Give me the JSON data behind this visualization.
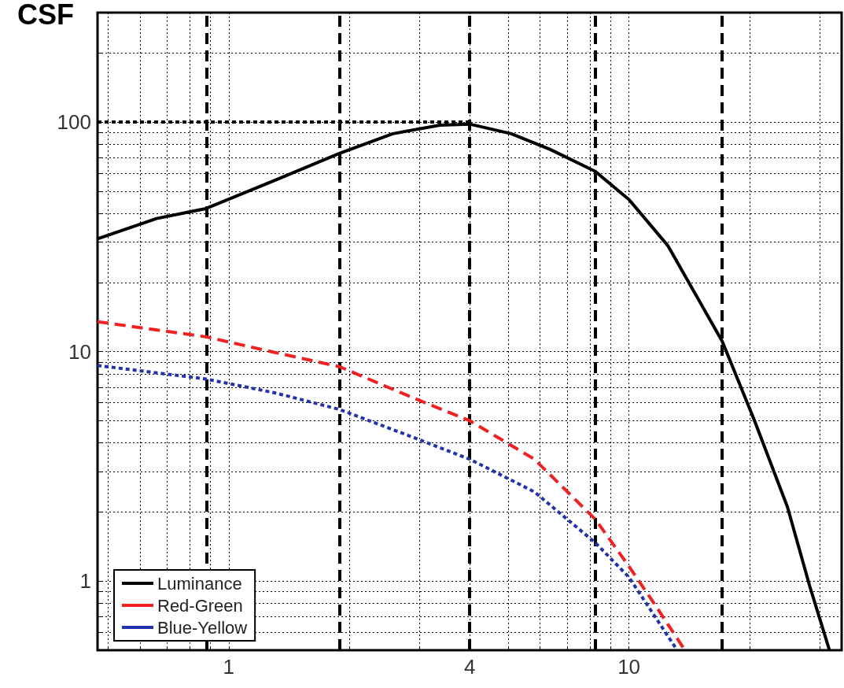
{
  "chart_data": {
    "type": "line",
    "ylabel": "CSF",
    "log": "xy",
    "grid": true,
    "legend": "bottom left",
    "marker": "none",
    "xlim": [
      0.47,
      34
    ],
    "ylim": [
      0.5,
      300
    ],
    "xticks": [
      {
        "value": 0.5,
        "label": null
      },
      {
        "value": 0.6,
        "label": null
      },
      {
        "value": 0.7,
        "label": null
      },
      {
        "value": 0.8,
        "label": null
      },
      {
        "value": 0.9,
        "label": null
      },
      1,
      {
        "value": 2,
        "label": null
      },
      {
        "value": 3,
        "label": null
      },
      4,
      {
        "value": 5,
        "label": null
      },
      {
        "value": 6,
        "label": null
      },
      {
        "value": 7,
        "label": null
      },
      {
        "value": 8,
        "label": null
      },
      {
        "value": 9,
        "label": null
      },
      10,
      {
        "value": 20,
        "label": null
      },
      {
        "value": 30,
        "label": null
      }
    ],
    "yticks": [
      {
        "value": 0.6,
        "label": null
      },
      {
        "value": 0.7,
        "label": null
      },
      {
        "value": 0.8,
        "label": null
      },
      {
        "value": 0.9,
        "label": null
      },
      1,
      {
        "value": 2,
        "label": null
      },
      {
        "value": 3,
        "label": null
      },
      {
        "value": 4,
        "label": null
      },
      {
        "value": 5,
        "label": null
      },
      {
        "value": 6,
        "label": null
      },
      {
        "value": 7,
        "label": null
      },
      {
        "value": 8,
        "label": null
      },
      {
        "value": 9,
        "label": null
      },
      10,
      {
        "value": 20,
        "label": null
      },
      {
        "value": 30,
        "label": null
      },
      {
        "value": 40,
        "label": null
      },
      {
        "value": 50,
        "label": null
      },
      {
        "value": 60,
        "label": null
      },
      {
        "value": 70,
        "label": null
      },
      {
        "value": 80,
        "label": null
      },
      {
        "value": 90,
        "label": null
      },
      100,
      {
        "value": 200,
        "label": null
      },
      {
        "value": 300,
        "label": null
      }
    ],
    "ref_lines": [
      {
        "axis": "x",
        "value": 0.877,
        "color": "#000000",
        "line_style": "dashed"
      },
      {
        "axis": "x",
        "value": 1.89,
        "color": "#000000",
        "line_style": "dashed"
      },
      {
        "axis": "x",
        "value": 4,
        "color": "#000000",
        "line_style": "dashed"
      },
      {
        "axis": "x",
        "value": 8.24,
        "color": "#000000",
        "line_style": "dashed"
      },
      {
        "axis": "x",
        "value": 17.1,
        "color": "#000000",
        "line_style": "dashed"
      }
    ],
    "series": [
      {
        "name": "Luminance",
        "color": "#000000",
        "line_style": "solid",
        "x": [
          0.47,
          0.66,
          0.877,
          1.31,
          1.89,
          2.57,
          3.37,
          4,
          5.08,
          6.36,
          8.24,
          10,
          12.5,
          17.1,
          20.6,
          24.9,
          28.3,
          31.7
        ],
        "values": [
          31,
          38,
          42,
          56,
          73,
          89,
          97,
          98,
          89,
          76,
          61,
          46,
          29,
          11.1,
          5,
          2.1,
          0.95,
          0.5
        ]
      },
      {
        "name": "Red-Green",
        "color": "#ee2222",
        "line_style": "dashed",
        "x": [
          0.47,
          0.877,
          1.31,
          1.89,
          2.82,
          4,
          5.8,
          8.24,
          10,
          11.5,
          13.7
        ],
        "values": [
          13.5,
          11.6,
          9.9,
          8.6,
          6.4,
          5,
          3.4,
          1.86,
          1.16,
          0.81,
          0.51
        ]
      },
      {
        "name": "Blue-Yellow",
        "color": "#2233aa",
        "line_style": "dotted",
        "x": [
          0.47,
          0.877,
          1.31,
          1.89,
          2.82,
          4,
          5.8,
          8.24,
          10,
          11.5,
          13.1
        ],
        "values": [
          8.7,
          7.6,
          6.6,
          5.6,
          4.3,
          3.4,
          2.45,
          1.47,
          1.04,
          0.72,
          0.51
        ]
      },
      {
        "color": "#000000",
        "line_style": "dotted",
        "x": [
          0.47,
          4
        ],
        "values": [
          100,
          100
        ]
      }
    ]
  }
}
